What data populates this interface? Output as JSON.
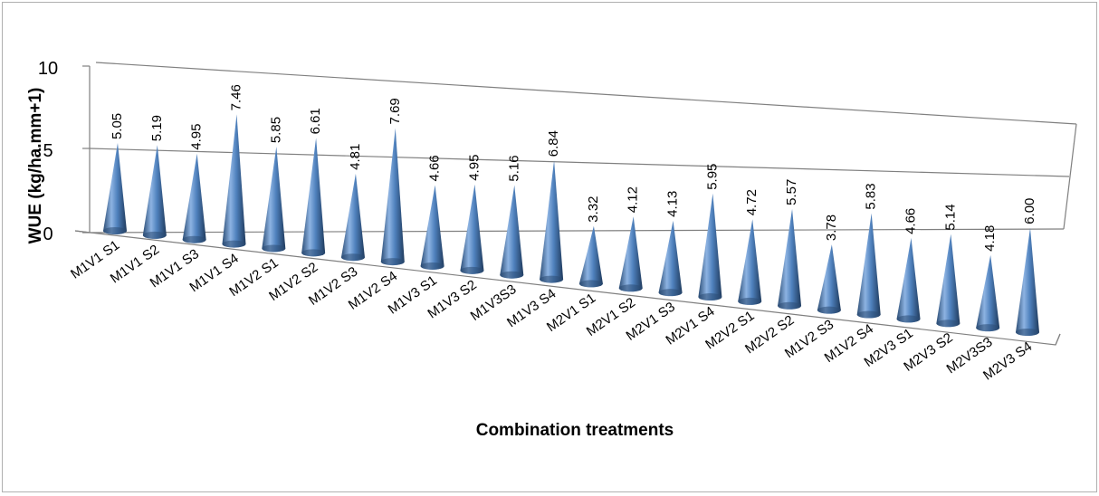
{
  "chart_data": {
    "type": "bar",
    "style": "3d-cone",
    "xlabel": "Combination treatments",
    "ylabel": "WUE (kg/ha.mm+1)",
    "ylim": [
      0,
      10
    ],
    "yticks": [
      "0",
      "5",
      "10"
    ],
    "categories": [
      "M1V1 S1",
      "M1V1 S2",
      "M1V1 S3",
      "M1V1 S4",
      "M1V2 S1",
      "M1V2 S2",
      "M1V2 S3",
      "M1V2 S4",
      "M1V3 S1",
      "M1V3 S2",
      "M1V3S3",
      "M1V3 S4",
      "M2V1 S1",
      "M2V1 S2",
      "M2V1 S3",
      "M2V1 S4",
      "M2V2 S1",
      "M2V2 S2",
      "M1V2 S3",
      "M1V2 S4",
      "M2V3 S1",
      "M2V3 S2",
      "M2V3S3",
      "M2V3 S4"
    ],
    "values": [
      5.05,
      5.19,
      4.95,
      7.46,
      5.85,
      6.61,
      4.81,
      7.69,
      4.66,
      4.95,
      5.16,
      6.84,
      3.32,
      4.12,
      4.13,
      5.95,
      4.72,
      5.57,
      3.78,
      5.83,
      4.66,
      5.14,
      4.18,
      6.0
    ],
    "value_labels": [
      "5.05",
      "5.19",
      "4.95",
      "7.46",
      "5.85",
      "6.61",
      "4.81",
      "7.69",
      "4.66",
      "4.95",
      "5.16",
      "6.84",
      "3.32",
      "4.12",
      "4.13",
      "5.95",
      "4.72",
      "5.57",
      "3.78",
      "5.83",
      "4.66",
      "5.14",
      "4.18",
      "6.00"
    ],
    "grid": false,
    "legend": "none",
    "colors": {
      "cone_light": "#8db3e2",
      "cone_mid": "#4f81bd",
      "cone_dark": "#2c4d75",
      "wall_line": "#808080"
    }
  }
}
